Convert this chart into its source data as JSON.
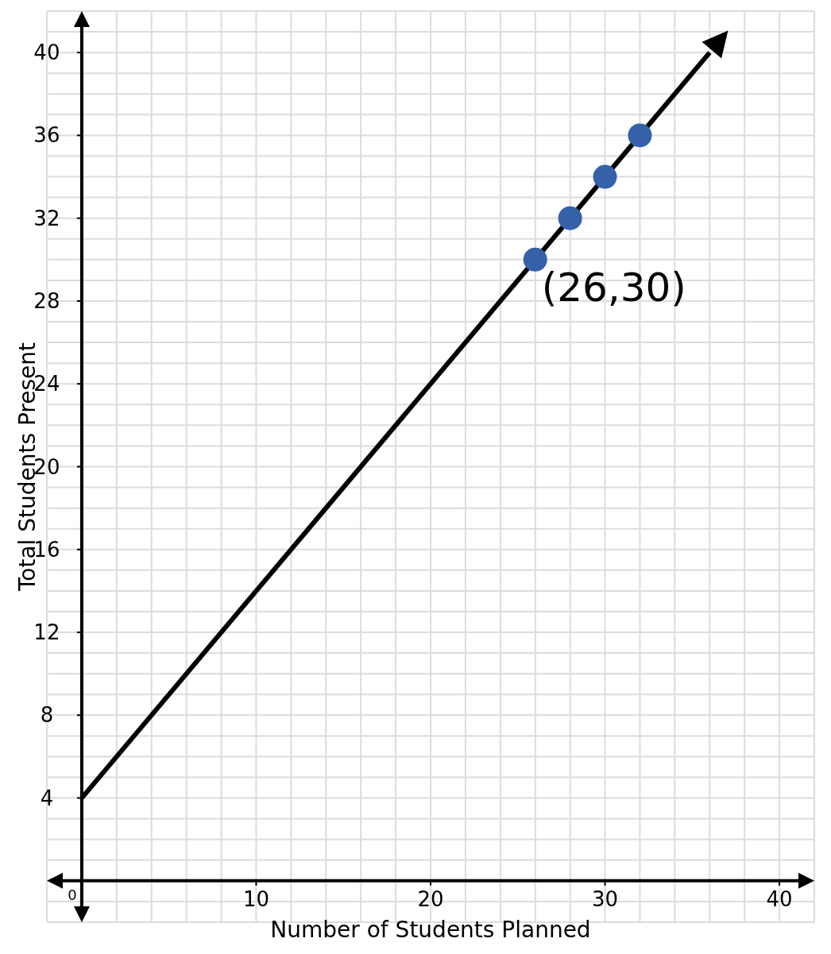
{
  "chart_data": {
    "type": "scatter",
    "xlabel": "Number of Students Planned",
    "ylabel": "Total Students Present",
    "xlim": [
      -2,
      42
    ],
    "ylim": [
      -2,
      42
    ],
    "xticks": [
      10,
      20,
      30,
      40
    ],
    "yticks": [
      4,
      8,
      12,
      16,
      20,
      24,
      28,
      32,
      36,
      40
    ],
    "grid": true,
    "marker": "circle",
    "series": [
      {
        "type": "line",
        "color": "#000000",
        "x": [
          0,
          36
        ],
        "values": [
          4,
          40
        ],
        "marker": "none",
        "line_style": "solid"
      },
      {
        "color": "#3461a8",
        "x": [
          26,
          28,
          30,
          32
        ],
        "values": [
          30,
          32,
          34,
          36
        ]
      }
    ],
    "annotations": [
      {
        "text": "(26,30)",
        "x": 26,
        "y": 30
      },
      "0"
    ]
  }
}
